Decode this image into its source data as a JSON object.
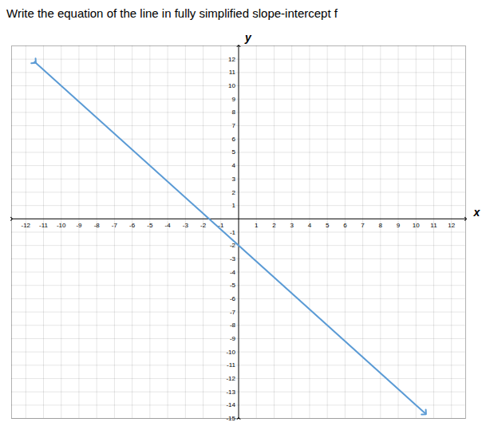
{
  "chart_data": {
    "type": "line",
    "title": "Write the equation of the line in fully simplified slope-intercept f",
    "xlabel": "x",
    "ylabel": "y",
    "x": [
      -11.5,
      10.5
    ],
    "values": [
      11.8,
      -14.6
    ],
    "color": "#5b9bd5",
    "xlim": [
      -12.8,
      12.8
    ],
    "ylim": [
      -15,
      13
    ],
    "xticks": [
      -12,
      -11,
      -10,
      -9,
      -8,
      -7,
      -6,
      -5,
      -4,
      -3,
      -2,
      -1,
      1,
      2,
      3,
      4,
      5,
      6,
      7,
      8,
      9,
      10,
      11,
      12
    ],
    "yticks": [
      -15,
      -14,
      -13,
      -12,
      -11,
      -10,
      -9,
      -8,
      -7,
      -6,
      -5,
      -4,
      -3,
      -2,
      -1,
      1,
      2,
      3,
      4,
      5,
      6,
      7,
      8,
      9,
      10,
      11,
      12
    ],
    "grid": true
  }
}
